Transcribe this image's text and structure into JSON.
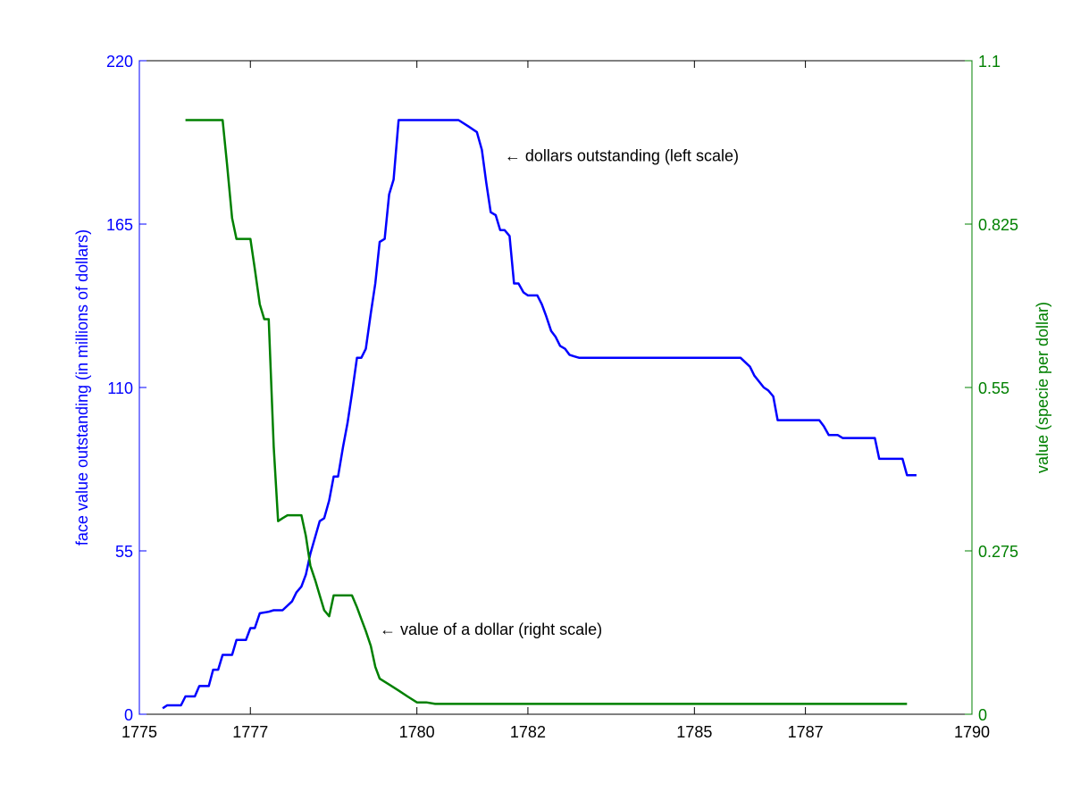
{
  "chart_data": {
    "type": "line",
    "x_axis": {
      "ticks": [
        1775,
        1777,
        1780,
        1782,
        1785,
        1787,
        1790
      ],
      "xlim": [
        1775,
        1790
      ]
    },
    "left_axis": {
      "label": "face value outstanding (in millions of dollars)",
      "ticks": [
        "0",
        "55",
        "110",
        "165",
        "220"
      ],
      "ylim": [
        0,
        220
      ],
      "color": "#0000ff"
    },
    "right_axis": {
      "label": "value (specie per dollar)",
      "ticks": [
        "0",
        "0.275",
        "0.55",
        "0.825",
        "1.1"
      ],
      "ylim": [
        0,
        1.1
      ],
      "color": "#008000"
    },
    "grid": false,
    "series": [
      {
        "color": "#0000ff",
        "axis": "left",
        "points": [
          [
            1775.42,
            2
          ],
          [
            1775.5,
            3
          ],
          [
            1775.75,
            3
          ],
          [
            1775.83,
            6
          ],
          [
            1776.0,
            6
          ],
          [
            1776.08,
            9.5
          ],
          [
            1776.25,
            9.5
          ],
          [
            1776.33,
            15
          ],
          [
            1776.42,
            15
          ],
          [
            1776.5,
            20
          ],
          [
            1776.67,
            20
          ],
          [
            1776.75,
            25
          ],
          [
            1776.92,
            25
          ],
          [
            1777.0,
            29
          ],
          [
            1777.08,
            29
          ],
          [
            1777.17,
            34
          ],
          [
            1777.33,
            34.5
          ],
          [
            1777.42,
            35
          ],
          [
            1777.58,
            35
          ],
          [
            1777.75,
            38
          ],
          [
            1777.83,
            41
          ],
          [
            1777.92,
            43
          ],
          [
            1778.0,
            47
          ],
          [
            1778.08,
            54
          ],
          [
            1778.25,
            65
          ],
          [
            1778.33,
            66
          ],
          [
            1778.42,
            72
          ],
          [
            1778.5,
            80
          ],
          [
            1778.58,
            80
          ],
          [
            1778.67,
            90
          ],
          [
            1778.75,
            98
          ],
          [
            1778.83,
            108
          ],
          [
            1778.92,
            120
          ],
          [
            1779.0,
            120
          ],
          [
            1779.08,
            123
          ],
          [
            1779.17,
            135
          ],
          [
            1779.25,
            145
          ],
          [
            1779.33,
            159
          ],
          [
            1779.42,
            160
          ],
          [
            1779.5,
            175
          ],
          [
            1779.58,
            180
          ],
          [
            1779.67,
            200
          ],
          [
            1780.75,
            200
          ],
          [
            1780.92,
            198
          ],
          [
            1781.08,
            196
          ],
          [
            1781.17,
            190
          ],
          [
            1781.25,
            179
          ],
          [
            1781.33,
            169
          ],
          [
            1781.42,
            168
          ],
          [
            1781.5,
            163
          ],
          [
            1781.58,
            163
          ],
          [
            1781.67,
            161
          ],
          [
            1781.75,
            145
          ],
          [
            1781.83,
            145
          ],
          [
            1781.92,
            142
          ],
          [
            1782.0,
            141
          ],
          [
            1782.17,
            141
          ],
          [
            1782.25,
            138
          ],
          [
            1782.33,
            134
          ],
          [
            1782.42,
            129
          ],
          [
            1782.5,
            127
          ],
          [
            1782.58,
            124
          ],
          [
            1782.67,
            123
          ],
          [
            1782.75,
            121
          ],
          [
            1782.83,
            120.5
          ],
          [
            1782.92,
            120
          ],
          [
            1785.83,
            120
          ],
          [
            1786.0,
            117
          ],
          [
            1786.08,
            114
          ],
          [
            1786.25,
            110
          ],
          [
            1786.33,
            109
          ],
          [
            1786.42,
            107
          ],
          [
            1786.5,
            99
          ],
          [
            1787.25,
            99
          ],
          [
            1787.33,
            97
          ],
          [
            1787.42,
            94
          ],
          [
            1787.58,
            94
          ],
          [
            1787.67,
            93
          ],
          [
            1788.25,
            93
          ],
          [
            1788.33,
            86
          ],
          [
            1788.75,
            86
          ],
          [
            1788.83,
            80.5
          ],
          [
            1789.0,
            80.5
          ]
        ]
      },
      {
        "color": "#008000",
        "axis": "left",
        "points": [
          [
            1775.83,
            200
          ],
          [
            1776.5,
            200
          ],
          [
            1776.58,
            185
          ],
          [
            1776.67,
            167
          ],
          [
            1776.75,
            160
          ],
          [
            1777.0,
            160
          ],
          [
            1777.08,
            150
          ],
          [
            1777.17,
            138
          ],
          [
            1777.25,
            133
          ],
          [
            1777.33,
            133
          ],
          [
            1777.42,
            90
          ],
          [
            1777.5,
            65
          ],
          [
            1777.58,
            66
          ],
          [
            1777.67,
            67
          ],
          [
            1777.92,
            67
          ],
          [
            1778.0,
            60
          ],
          [
            1778.08,
            50
          ],
          [
            1778.17,
            45
          ],
          [
            1778.25,
            40
          ],
          [
            1778.33,
            35
          ],
          [
            1778.42,
            33
          ],
          [
            1778.5,
            40
          ],
          [
            1778.83,
            40
          ],
          [
            1778.92,
            36
          ],
          [
            1779.0,
            32
          ],
          [
            1779.08,
            28
          ],
          [
            1779.17,
            23
          ],
          [
            1779.25,
            16
          ],
          [
            1779.33,
            12
          ],
          [
            1779.5,
            10
          ],
          [
            1779.67,
            8
          ],
          [
            1779.83,
            6
          ],
          [
            1780.0,
            4
          ],
          [
            1780.17,
            4
          ],
          [
            1780.33,
            3.5
          ],
          [
            1788.83,
            3.5
          ]
        ]
      }
    ],
    "annotations": [
      {
        "text": "← dollars outstanding (left scale)",
        "x": 1781.58,
        "y": 188,
        "color": "#000000"
      },
      {
        "text": "← value of a dollar (right scale)",
        "x": 1779.33,
        "y": 28.5,
        "color": "#000000"
      }
    ]
  }
}
